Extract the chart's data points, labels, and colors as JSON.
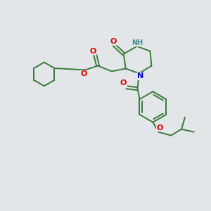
{
  "background_color": "#e2e6e8",
  "bond_color": "#3a7a3a",
  "atom_colors": {
    "O": "#dd0000",
    "N": "#0000cc",
    "NH": "#4a8a8a",
    "C": "#3a7a3a"
  },
  "figsize": [
    3.0,
    3.0
  ],
  "dpi": 100
}
